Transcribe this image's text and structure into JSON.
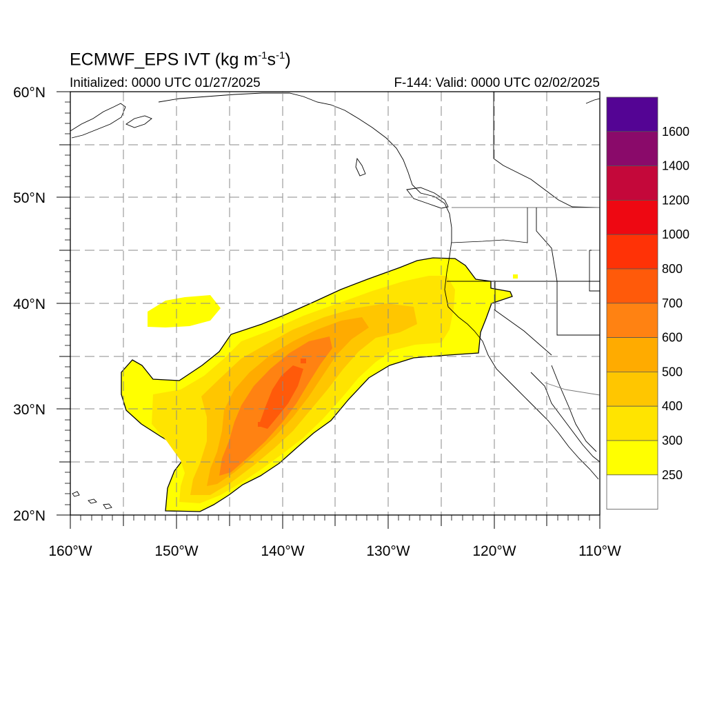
{
  "title": {
    "text": "ECMWF_EPS IVT (kg m",
    "sup1": "-1",
    "mid": "s",
    "sup2": "-1",
    "end": ")"
  },
  "init_text": "Initialized: 0000 UTC 01/27/2025",
  "valid_text": "F-144: Valid: 0000 UTC 02/02/2025",
  "map": {
    "lon_range": [
      -160,
      -110
    ],
    "lat_range": [
      20,
      60
    ],
    "lon_labels": [
      "160°W",
      "150°W",
      "140°W",
      "130°W",
      "120°W",
      "110°W"
    ],
    "lat_labels": [
      "60°N",
      "50°N",
      "40°N",
      "30°N",
      "20°N"
    ],
    "grid_lines": "dashed"
  },
  "colorbar": {
    "labels": [
      "1600",
      "1400",
      "1200",
      "1000",
      "800",
      "700",
      "600",
      "500",
      "400",
      "300",
      "250"
    ],
    "colors": [
      "#540494",
      "#8a0a6a",
      "#c4083a",
      "#ee0812",
      "#ff3206",
      "#ff5a0a",
      "#ff8212",
      "#ffab00",
      "#ffc600",
      "#ffe400",
      "#ffff00",
      "#ffffff"
    ]
  }
}
